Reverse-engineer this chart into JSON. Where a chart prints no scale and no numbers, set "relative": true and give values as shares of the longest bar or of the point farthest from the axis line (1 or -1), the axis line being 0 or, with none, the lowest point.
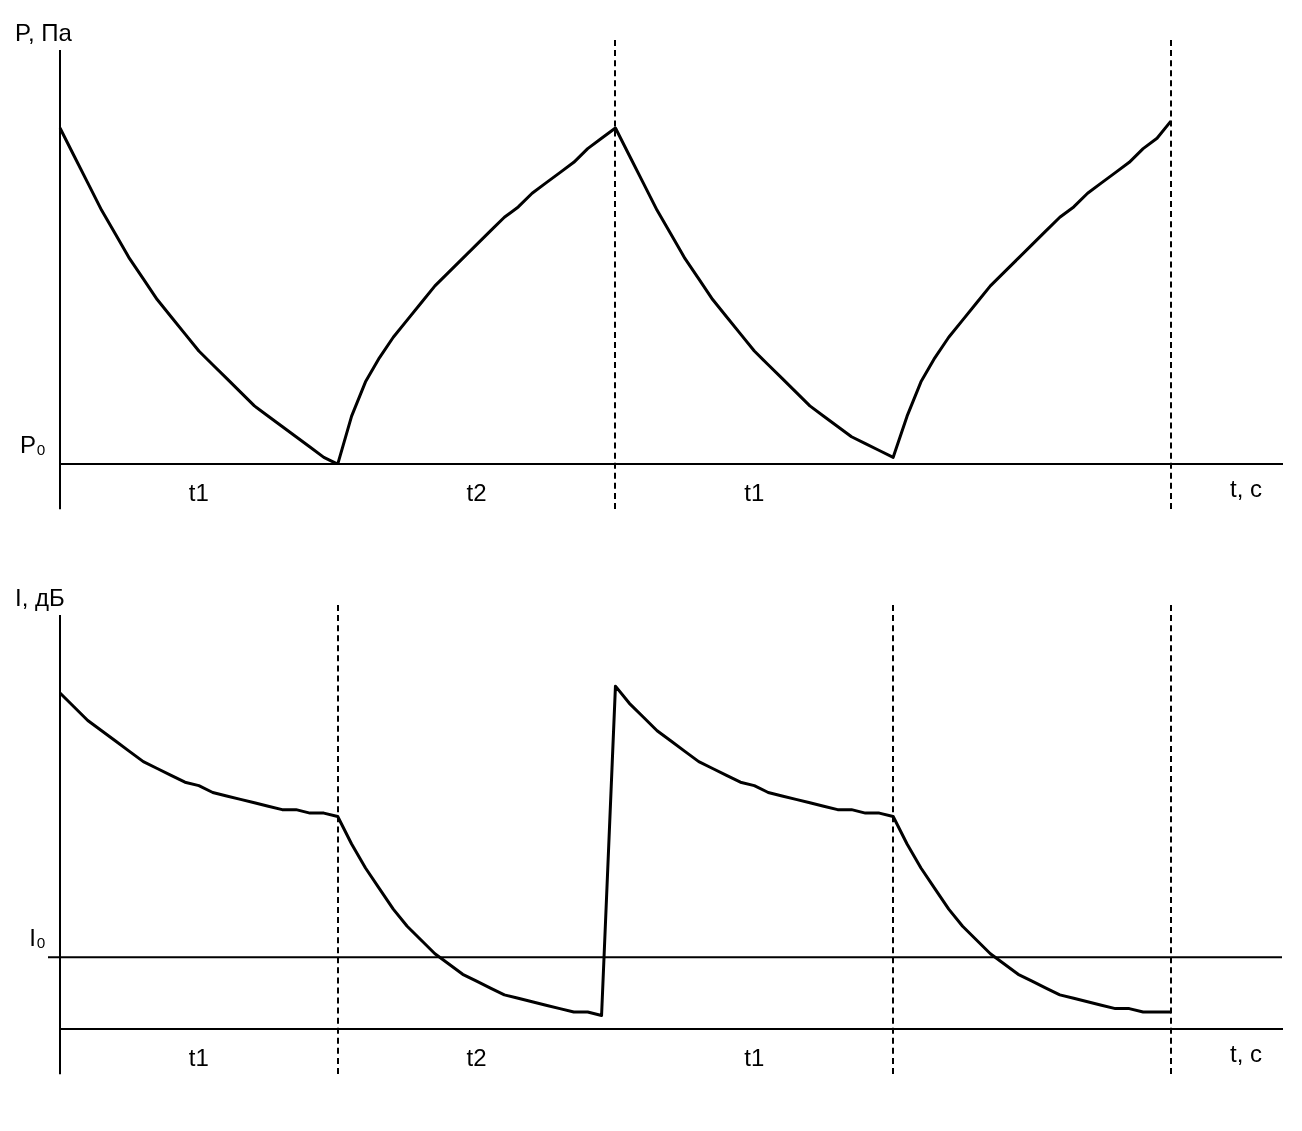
{
  "chart_data": [
    {
      "type": "line",
      "relative": true,
      "ylabel": "P, Па",
      "xlabel": "t, c",
      "tick_labels": "x",
      "legend": false,
      "grid": false,
      "marker": "none",
      "categories": [
        null,
        null,
        null,
        null,
        null,
        null,
        null,
        null,
        null,
        null,
        "t1",
        null,
        null,
        null,
        null,
        null,
        null,
        null,
        null,
        null,
        null,
        null,
        null,
        null,
        null,
        null,
        null,
        null,
        null,
        null,
        "t2",
        null,
        null,
        null,
        null,
        null,
        null,
        null,
        null,
        null,
        null,
        null,
        null,
        null,
        null,
        null,
        null,
        null,
        null,
        null,
        "t1",
        null,
        null,
        null,
        null,
        null,
        null,
        null,
        null,
        null,
        null,
        null,
        null,
        null,
        null,
        null,
        null,
        null,
        null,
        null,
        null,
        null,
        null,
        null,
        null,
        null,
        null,
        null,
        null,
        null,
        null,
        null,
        null,
        null,
        null,
        null,
        null,
        null,
        null
      ],
      "series": [
        {
          "color": "#000000",
          "values": [
            0.98,
            0.9,
            0.82,
            0.74,
            0.67,
            0.6,
            0.54,
            0.48,
            0.43,
            0.38,
            0.33,
            0.29,
            0.25,
            0.21,
            0.17,
            0.14,
            0.11,
            0.08,
            0.05,
            0.02,
            0,
            0.14,
            0.24,
            0.31,
            0.37,
            0.42,
            0.47,
            0.52,
            0.56,
            0.6,
            0.64,
            0.68,
            0.72,
            0.75,
            0.79,
            0.82,
            0.85,
            0.88,
            0.92,
            0.95,
            0.98,
            0.9,
            0.82,
            0.74,
            0.67,
            0.6,
            0.54,
            0.48,
            0.43,
            0.38,
            0.33,
            0.29,
            0.25,
            0.21,
            0.17,
            0.14,
            0.11,
            0.08,
            0.06,
            0.04,
            0.02,
            0.14,
            0.24,
            0.31,
            0.37,
            0.42,
            0.47,
            0.52,
            0.56,
            0.6,
            0.64,
            0.68,
            0.72,
            0.75,
            0.79,
            0.82,
            0.85,
            0.88,
            0.92,
            0.95,
            1.0,
            null,
            null,
            null,
            null,
            null,
            null,
            null,
            null
          ]
        }
      ],
      "annotations": [
        "P₀"
      ]
    },
    {
      "type": "line",
      "relative": true,
      "ylabel": "I, дБ",
      "xlabel": "t, c",
      "tick_labels": "x",
      "legend": false,
      "grid": false,
      "marker": "none",
      "categories": [
        null,
        null,
        null,
        null,
        null,
        null,
        null,
        null,
        null,
        null,
        "t1",
        null,
        null,
        null,
        null,
        null,
        null,
        null,
        null,
        null,
        null,
        null,
        null,
        null,
        null,
        null,
        null,
        null,
        null,
        null,
        "t2",
        null,
        null,
        null,
        null,
        null,
        null,
        null,
        null,
        null,
        null,
        null,
        null,
        null,
        null,
        null,
        null,
        null,
        null,
        null,
        "t1",
        null,
        null,
        null,
        null,
        null,
        null,
        null,
        null,
        null,
        null,
        null,
        null,
        null,
        null,
        null,
        null,
        null,
        null,
        null,
        null,
        null,
        null,
        null,
        null,
        null,
        null,
        null,
        null,
        null,
        null,
        null,
        null,
        null,
        null,
        null,
        null,
        null,
        null
      ],
      "series": [
        {
          "color": "#000000",
          "values": [
            0.98,
            0.94,
            0.9,
            0.87,
            0.84,
            0.81,
            0.78,
            0.76,
            0.74,
            0.72,
            0.71,
            0.69,
            0.68,
            0.67,
            0.66,
            0.65,
            0.64,
            0.64,
            0.63,
            0.63,
            0.62,
            0.54,
            0.47,
            0.41,
            0.35,
            0.3,
            0.26,
            0.22,
            0.19,
            0.16,
            0.14,
            0.12,
            0.1,
            0.09,
            0.08,
            0.07,
            0.06,
            0.05,
            0.05,
            0.04,
            1.0,
            0.95,
            0.91,
            0.87,
            0.84,
            0.81,
            0.78,
            0.76,
            0.74,
            0.72,
            0.71,
            0.69,
            0.68,
            0.67,
            0.66,
            0.65,
            0.64,
            0.64,
            0.63,
            0.63,
            0.62,
            0.54,
            0.47,
            0.41,
            0.35,
            0.3,
            0.26,
            0.22,
            0.19,
            0.16,
            0.14,
            0.12,
            0.1,
            0.09,
            0.08,
            0.07,
            0.06,
            0.06,
            0.05,
            0.05,
            0.05,
            null,
            null,
            null,
            null,
            null,
            null,
            null,
            null
          ]
        }
      ],
      "ref_lines": [
        {
          "axis": "y",
          "value": 0.21,
          "label": "I₀"
        }
      ]
    }
  ]
}
